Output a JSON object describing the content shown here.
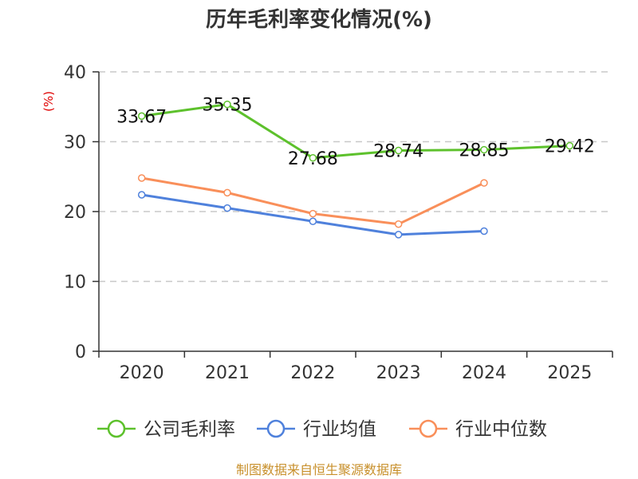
{
  "colors": {
    "company": "#5dc12c",
    "industry_avg": "#4f81dc",
    "industry_median": "#f98f5a",
    "grid": "#c8c8c8",
    "axis": "#333333",
    "unit": "#e00000",
    "source": "#c8902c"
  },
  "chart_data": {
    "type": "line",
    "title": "历年毛利率变化情况(%)",
    "ylabel": "(%)",
    "xlabel": "",
    "categories": [
      "2020",
      "2021",
      "2022",
      "2023",
      "2024",
      "2025"
    ],
    "ylim": [
      0,
      40
    ],
    "yticks": [
      0,
      10,
      20,
      30,
      40
    ],
    "grid": true,
    "legend_position": "bottom",
    "series": [
      {
        "name": "公司毛利率",
        "color_key": "company",
        "values": [
          33.67,
          35.35,
          27.68,
          28.74,
          28.85,
          29.42
        ],
        "labels": [
          "33.67",
          "35.35",
          "27.68",
          "28.74",
          "28.85",
          "29.42"
        ]
      },
      {
        "name": "行业均值",
        "color_key": "industry_avg",
        "values": [
          22.4,
          20.5,
          18.6,
          16.7,
          17.2,
          null
        ]
      },
      {
        "name": "行业中位数",
        "color_key": "industry_median",
        "values": [
          24.8,
          22.7,
          19.7,
          18.2,
          24.1,
          null
        ]
      }
    ]
  },
  "footer": {
    "source": "制图数据来自恒生聚源数据库"
  }
}
